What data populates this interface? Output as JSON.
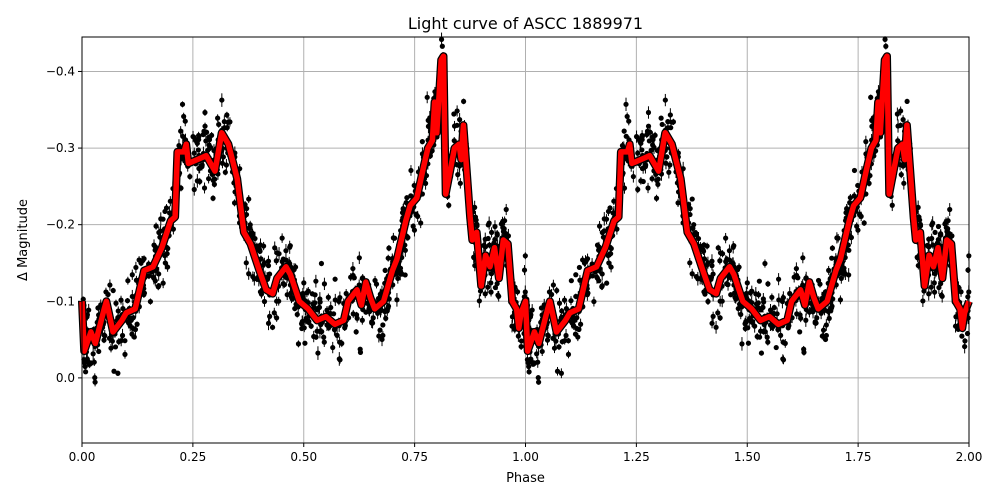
{
  "chart_data": {
    "type": "scatter",
    "title": "Light curve of ASCC 1889971",
    "xlabel": "Phase",
    "ylabel": "Δ Magnitude",
    "xlim": [
      0,
      2
    ],
    "ylim": [
      0.085,
      -0.445
    ],
    "y_inverted": true,
    "grid": true,
    "xticks": [
      0,
      0.25,
      0.5,
      0.75,
      1.0,
      1.25,
      1.5,
      1.75,
      2.0
    ],
    "xtick_labels": [
      "0.00",
      "0.25",
      "0.50",
      "0.75",
      "1.00",
      "1.25",
      "1.50",
      "1.75",
      "2.00"
    ],
    "yticks": [
      -0.4,
      -0.3,
      -0.2,
      -0.1,
      0.0
    ],
    "ytick_labels": [
      "−0.4",
      "−0.3",
      "−0.2",
      "−0.1",
      "0.0"
    ],
    "observations": {
      "marker": "circle",
      "color": "#000000",
      "error_bars": true,
      "repeated_over_two_periods": true
    },
    "binned_curve": {
      "color": "#ff0000",
      "edge_color": "#000000",
      "repeated_over_two_periods": true,
      "phase": [
        0.0,
        0.005,
        0.02,
        0.03,
        0.05,
        0.055,
        0.07,
        0.09,
        0.1,
        0.12,
        0.14,
        0.16,
        0.18,
        0.2,
        0.21,
        0.215,
        0.23,
        0.235,
        0.24,
        0.26,
        0.28,
        0.3,
        0.315,
        0.33,
        0.35,
        0.365,
        0.38,
        0.4,
        0.415,
        0.43,
        0.44,
        0.46,
        0.47,
        0.49,
        0.51,
        0.53,
        0.55,
        0.57,
        0.59,
        0.6,
        0.62,
        0.63,
        0.64,
        0.65,
        0.66,
        0.68,
        0.7,
        0.71,
        0.73,
        0.74,
        0.755,
        0.77,
        0.78,
        0.79,
        0.795,
        0.8,
        0.81,
        0.815,
        0.82,
        0.83,
        0.84,
        0.85,
        0.855,
        0.86,
        0.875,
        0.88,
        0.89,
        0.9,
        0.91,
        0.92,
        0.93,
        0.94,
        0.95,
        0.96,
        0.97,
        0.98,
        0.985,
        0.99,
        1.0
      ],
      "magnitude": [
        -0.1,
        -0.035,
        -0.06,
        -0.045,
        -0.09,
        -0.1,
        -0.06,
        -0.075,
        -0.085,
        -0.09,
        -0.14,
        -0.145,
        -0.17,
        -0.205,
        -0.21,
        -0.295,
        -0.295,
        -0.305,
        -0.28,
        -0.285,
        -0.29,
        -0.27,
        -0.32,
        -0.305,
        -0.26,
        -0.19,
        -0.175,
        -0.14,
        -0.115,
        -0.11,
        -0.13,
        -0.145,
        -0.135,
        -0.1,
        -0.09,
        -0.075,
        -0.08,
        -0.07,
        -0.075,
        -0.1,
        -0.115,
        -0.095,
        -0.125,
        -0.105,
        -0.09,
        -0.1,
        -0.14,
        -0.155,
        -0.205,
        -0.225,
        -0.235,
        -0.275,
        -0.3,
        -0.31,
        -0.36,
        -0.32,
        -0.415,
        -0.42,
        -0.24,
        -0.27,
        -0.3,
        -0.305,
        -0.285,
        -0.33,
        -0.21,
        -0.18,
        -0.19,
        -0.12,
        -0.16,
        -0.145,
        -0.17,
        -0.13,
        -0.18,
        -0.175,
        -0.1,
        -0.09,
        -0.065,
        -0.085,
        -0.1
      ]
    }
  }
}
